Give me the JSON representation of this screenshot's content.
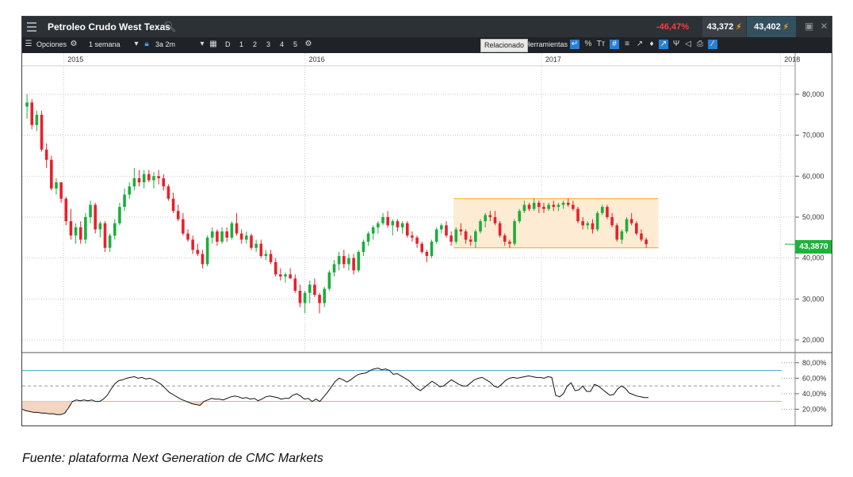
{
  "window": {
    "title": "Petroleo Crudo West Texas",
    "change_pct": "-46,47%",
    "sell_price": "43,372",
    "buy_price": "43,402",
    "search_icon": "search-icon",
    "menu_icon": "hamburger-icon"
  },
  "toolbar": {
    "options_label": "Opciones",
    "interval_label": "1 semana",
    "range_label": "3a 2m",
    "periods": [
      "D",
      "1",
      "2",
      "3",
      "4",
      "5"
    ],
    "related_label": "Relacionado",
    "tools_label": "Herramientas",
    "tool_icons": [
      "%",
      "Tт",
      "#"
    ]
  },
  "colors": {
    "up": "#1aaf3c",
    "down": "#e8202a",
    "range_fill": "#fdebd3",
    "range_border": "#f5a623",
    "price_badge": "#1db33b",
    "rsi_line": "#111111",
    "rsi_upper": "#4fb3c9",
    "rsi_lower": "#f0a070"
  },
  "price_label": "43,3870",
  "caption": "Fuente: plataforma Next Generation de CMC Markets",
  "chart_data": [
    {
      "type": "candlestick",
      "title": "Petroleo Crudo West Texas",
      "interval": "1 semana",
      "x_tick_labels": [
        "2015",
        "2016",
        "2017",
        "2018"
      ],
      "y_tick_labels": [
        "80,000",
        "70,000",
        "60,000",
        "50,000",
        "40,000",
        "30,000",
        "20,000"
      ],
      "ylim": [
        17,
        86
      ],
      "grid": true,
      "last_price": 43.387,
      "range_box": {
        "from_week": 88,
        "to_week": 130,
        "low": 42.5,
        "high": 54.5
      },
      "candles": [
        [
          77.0,
          80.0,
          74.0,
          78.0
        ],
        [
          78.0,
          78.8,
          71.5,
          72.5
        ],
        [
          72.5,
          76.0,
          71.0,
          75.0
        ],
        [
          75.0,
          76.0,
          66.0,
          66.5
        ],
        [
          66.5,
          68.0,
          62.0,
          64.0
        ],
        [
          64.0,
          65.0,
          56.5,
          57.0
        ],
        [
          57.0,
          59.5,
          55.5,
          58.5
        ],
        [
          58.5,
          58.5,
          53.5,
          54.5
        ],
        [
          54.5,
          55.0,
          48.0,
          49.0
        ],
        [
          49.0,
          52.0,
          44.5,
          45.5
        ],
        [
          45.5,
          48.5,
          43.5,
          47.5
        ],
        [
          47.5,
          49.0,
          43.5,
          44.5
        ],
        [
          44.5,
          51.0,
          43.5,
          50.0
        ],
        [
          50.0,
          54.0,
          48.5,
          53.0
        ],
        [
          53.0,
          53.5,
          46.0,
          47.0
        ],
        [
          47.0,
          49.0,
          45.0,
          48.5
        ],
        [
          48.5,
          49.0,
          41.5,
          42.5
        ],
        [
          42.5,
          46.0,
          41.5,
          45.5
        ],
        [
          45.5,
          49.5,
          44.5,
          48.5
        ],
        [
          48.5,
          53.5,
          48.0,
          52.5
        ],
        [
          52.5,
          57.0,
          51.5,
          55.5
        ],
        [
          55.5,
          58.5,
          54.5,
          57.5
        ],
        [
          57.5,
          62.0,
          56.5,
          59.5
        ],
        [
          59.5,
          61.5,
          57.5,
          58.5
        ],
        [
          58.5,
          61.5,
          57.0,
          60.5
        ],
        [
          60.5,
          61.5,
          58.5,
          59.0
        ],
        [
          59.0,
          61.0,
          57.0,
          60.0
        ],
        [
          60.0,
          61.5,
          58.0,
          59.5
        ],
        [
          59.5,
          60.5,
          56.5,
          57.5
        ],
        [
          57.5,
          58.0,
          54.0,
          54.5
        ],
        [
          54.5,
          56.0,
          51.0,
          51.5
        ],
        [
          51.5,
          53.0,
          49.0,
          49.5
        ],
        [
          49.5,
          51.0,
          45.5,
          46.0
        ],
        [
          46.0,
          47.0,
          44.0,
          44.5
        ],
        [
          44.5,
          45.5,
          41.0,
          42.0
        ],
        [
          42.0,
          43.5,
          40.5,
          41.0
        ],
        [
          41.0,
          42.0,
          37.5,
          38.5
        ],
        [
          38.5,
          45.5,
          38.0,
          45.0
        ],
        [
          45.0,
          47.5,
          43.5,
          46.5
        ],
        [
          46.5,
          47.0,
          43.0,
          44.0
        ],
        [
          44.0,
          47.5,
          43.5,
          46.5
        ],
        [
          46.5,
          47.5,
          44.0,
          45.0
        ],
        [
          45.0,
          49.0,
          44.5,
          48.5
        ],
        [
          48.5,
          51.0,
          45.5,
          46.0
        ],
        [
          46.0,
          47.0,
          43.5,
          44.5
        ],
        [
          44.5,
          46.5,
          43.5,
          45.5
        ],
        [
          45.5,
          46.0,
          42.0,
          42.5
        ],
        [
          42.5,
          44.5,
          41.5,
          43.5
        ],
        [
          43.5,
          44.5,
          40.0,
          40.5
        ],
        [
          40.5,
          42.0,
          39.5,
          41.0
        ],
        [
          41.0,
          42.0,
          38.5,
          39.0
        ],
        [
          39.0,
          40.0,
          35.5,
          36.0
        ],
        [
          36.0,
          37.5,
          34.5,
          35.5
        ],
        [
          35.5,
          36.5,
          34.0,
          36.0
        ],
        [
          36.0,
          37.5,
          35.0,
          35.0
        ],
        [
          35.0,
          36.0,
          31.5,
          32.0
        ],
        [
          32.0,
          33.5,
          28.0,
          29.0
        ],
        [
          29.0,
          32.0,
          26.5,
          31.5
        ],
        [
          31.5,
          34.5,
          29.0,
          33.5
        ],
        [
          33.5,
          35.0,
          30.5,
          31.0
        ],
        [
          31.0,
          31.5,
          26.5,
          29.0
        ],
        [
          29.0,
          33.0,
          28.0,
          32.5
        ],
        [
          32.5,
          37.0,
          32.0,
          36.5
        ],
        [
          36.5,
          39.5,
          35.5,
          38.5
        ],
        [
          38.5,
          41.5,
          37.0,
          40.5
        ],
        [
          40.5,
          42.0,
          37.5,
          38.5
        ],
        [
          38.5,
          41.0,
          37.0,
          40.0
        ],
        [
          40.0,
          41.0,
          36.0,
          37.0
        ],
        [
          37.0,
          42.0,
          36.5,
          41.5
        ],
        [
          41.5,
          44.5,
          40.5,
          44.0
        ],
        [
          44.0,
          46.5,
          43.0,
          46.0
        ],
        [
          46.0,
          48.0,
          44.5,
          47.5
        ],
        [
          47.5,
          49.0,
          46.0,
          48.5
        ],
        [
          48.5,
          51.0,
          48.0,
          50.0
        ],
        [
          50.0,
          51.5,
          47.5,
          48.0
        ],
        [
          48.0,
          49.5,
          45.5,
          49.0
        ],
        [
          49.0,
          49.5,
          46.5,
          47.5
        ],
        [
          47.5,
          49.0,
          46.0,
          48.5
        ],
        [
          48.5,
          49.0,
          45.0,
          45.5
        ],
        [
          45.5,
          46.5,
          44.0,
          45.0
        ],
        [
          45.0,
          45.5,
          42.5,
          43.5
        ],
        [
          43.5,
          44.0,
          41.0,
          41.5
        ],
        [
          41.5,
          42.0,
          39.0,
          40.5
        ],
        [
          40.5,
          44.5,
          40.0,
          44.0
        ],
        [
          44.0,
          47.5,
          43.5,
          47.0
        ],
        [
          47.0,
          48.5,
          46.0,
          48.0
        ],
        [
          48.0,
          49.0,
          45.0,
          45.5
        ],
        [
          45.5,
          46.5,
          43.0,
          44.0
        ],
        [
          44.0,
          47.5,
          43.5,
          47.0
        ],
        [
          47.0,
          48.5,
          45.5,
          46.5
        ],
        [
          46.5,
          47.0,
          43.5,
          44.5
        ],
        [
          44.5,
          45.5,
          43.0,
          44.0
        ],
        [
          44.0,
          47.0,
          42.5,
          46.5
        ],
        [
          46.5,
          49.5,
          46.0,
          49.0
        ],
        [
          49.0,
          51.0,
          47.5,
          50.5
        ],
        [
          50.5,
          51.5,
          49.0,
          50.0
        ],
        [
          50.0,
          51.5,
          48.0,
          48.5
        ],
        [
          48.5,
          49.0,
          45.0,
          45.5
        ],
        [
          45.5,
          46.0,
          43.0,
          44.0
        ],
        [
          44.0,
          44.5,
          42.5,
          43.5
        ],
        [
          43.5,
          49.5,
          43.0,
          49.0
        ],
        [
          49.0,
          52.0,
          48.5,
          51.5
        ],
        [
          51.5,
          54.0,
          51.0,
          53.0
        ],
        [
          53.0,
          53.5,
          51.5,
          52.0
        ],
        [
          52.0,
          54.5,
          51.5,
          53.5
        ],
        [
          53.5,
          54.0,
          51.0,
          52.5
        ],
        [
          52.5,
          53.5,
          51.0,
          52.0
        ],
        [
          52.0,
          53.5,
          51.5,
          53.0
        ],
        [
          53.0,
          54.0,
          51.5,
          52.5
        ],
        [
          52.5,
          53.5,
          51.5,
          53.0
        ],
        [
          53.0,
          54.0,
          52.0,
          53.5
        ],
        [
          53.5,
          54.5,
          52.5,
          53.0
        ],
        [
          53.0,
          54.0,
          51.5,
          52.0
        ],
        [
          52.0,
          52.5,
          48.5,
          49.0
        ],
        [
          49.0,
          50.0,
          47.0,
          48.0
        ],
        [
          48.0,
          49.0,
          47.0,
          48.5
        ],
        [
          48.5,
          49.5,
          46.0,
          47.0
        ],
        [
          47.0,
          51.5,
          46.5,
          51.0
        ],
        [
          51.0,
          53.0,
          50.5,
          52.5
        ],
        [
          52.5,
          53.0,
          49.5,
          50.0
        ],
        [
          50.0,
          51.0,
          47.5,
          48.0
        ],
        [
          48.0,
          48.5,
          44.0,
          44.5
        ],
        [
          44.5,
          47.0,
          43.5,
          46.5
        ],
        [
          46.5,
          50.0,
          46.0,
          49.5
        ],
        [
          49.5,
          51.0,
          48.0,
          48.5
        ],
        [
          48.5,
          49.0,
          45.5,
          46.0
        ],
        [
          46.0,
          47.0,
          44.0,
          44.5
        ],
        [
          44.5,
          45.0,
          42.5,
          43.4
        ]
      ]
    },
    {
      "type": "line",
      "indicator": "RSI",
      "y_tick_labels": [
        "80,00%",
        "60,00%",
        "40,00%",
        "20,00%"
      ],
      "ylim": [
        0,
        90
      ],
      "levels": [
        70,
        30
      ],
      "midline": 50,
      "values": [
        20,
        18,
        17,
        16,
        16,
        15,
        15,
        14,
        14,
        13,
        13,
        15,
        22,
        30,
        32,
        31,
        32,
        31,
        32,
        30,
        30,
        33,
        38,
        46,
        53,
        57,
        58,
        60,
        61,
        62,
        60,
        61,
        59,
        60,
        58,
        55,
        52,
        47,
        42,
        39,
        36,
        33,
        31,
        29,
        27,
        26,
        25,
        30,
        32,
        34,
        33,
        33,
        32,
        34,
        36,
        37,
        36,
        34,
        35,
        33,
        34,
        31,
        33,
        36,
        37,
        36,
        35,
        33,
        34,
        34,
        38,
        40,
        37,
        33,
        34,
        30,
        33,
        30,
        36,
        42,
        49,
        56,
        60,
        58,
        55,
        58,
        62,
        65,
        66,
        67,
        70,
        72,
        73,
        71,
        72,
        70,
        65,
        66,
        63,
        60,
        57,
        52,
        47,
        44,
        48,
        52,
        56,
        53,
        49,
        50,
        54,
        58,
        55,
        52,
        50,
        50,
        54,
        58,
        60,
        61,
        58,
        55,
        50,
        48,
        52,
        57,
        60,
        61,
        60,
        61,
        62,
        63,
        62,
        61,
        61,
        60,
        62,
        61,
        38,
        36,
        40,
        50,
        54,
        44,
        45,
        50,
        43,
        43,
        52,
        50,
        46,
        42,
        38,
        39,
        46,
        50,
        47,
        41,
        39,
        37,
        36,
        35,
        35
      ]
    }
  ]
}
